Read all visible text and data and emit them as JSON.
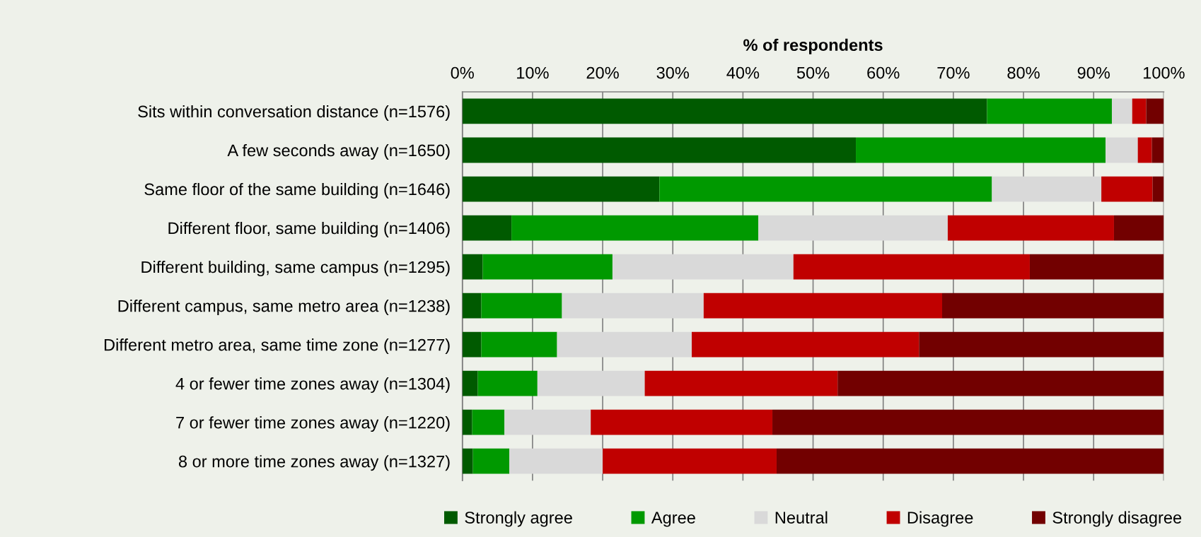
{
  "chart_data": {
    "type": "bar",
    "orientation": "horizontal",
    "stacked": true,
    "xlabel": "% of respondents",
    "categories": [
      "Sits within conversation distance (n=1576)",
      "A few seconds away (n=1650)",
      "Same floor of the same building (n=1646)",
      "Different floor, same building (n=1406)",
      "Different building, same campus (n=1295)",
      "Different campus, same metro area (n=1238)",
      "Different metro area, same time zone (n=1277)",
      "4 or fewer time zones away (n=1304)",
      "7 or fewer time zones away (n=1220)",
      "8 or more time zones away (n=1327)"
    ],
    "series": [
      {
        "name": "Strongly agree",
        "color": "#005a00",
        "values": [
          74.8,
          56.1,
          28.1,
          7.0,
          2.9,
          2.7,
          2.7,
          2.2,
          1.4,
          1.5
        ]
      },
      {
        "name": "Agree",
        "color": "#009900",
        "values": [
          17.8,
          35.6,
          47.4,
          35.2,
          18.5,
          11.5,
          10.8,
          8.5,
          4.6,
          5.2
        ]
      },
      {
        "name": "Neutral",
        "color": "#d9d9d9",
        "values": [
          2.9,
          4.6,
          15.6,
          27.0,
          25.8,
          20.2,
          19.2,
          15.3,
          12.3,
          13.3
        ]
      },
      {
        "name": "Disagree",
        "color": "#c00000",
        "values": [
          2.0,
          2.0,
          7.3,
          23.7,
          33.7,
          34.0,
          32.4,
          27.5,
          25.9,
          24.8
        ]
      },
      {
        "name": "Strongly disagree",
        "color": "#720000",
        "values": [
          2.5,
          1.7,
          1.6,
          7.1,
          19.1,
          31.6,
          34.9,
          46.5,
          55.8,
          55.2
        ]
      }
    ],
    "xlim": [
      0,
      100
    ],
    "xticks": [
      {
        "value": 0,
        "label": "0%"
      },
      {
        "value": 10,
        "label": "10%"
      },
      {
        "value": 20,
        "label": "20%"
      },
      {
        "value": 30,
        "label": "30%"
      },
      {
        "value": 40,
        "label": "40%"
      },
      {
        "value": 50,
        "label": "50%"
      },
      {
        "value": 60,
        "label": "60%"
      },
      {
        "value": 70,
        "label": "70%"
      },
      {
        "value": 80,
        "label": "80%"
      },
      {
        "value": 90,
        "label": "90%"
      },
      {
        "value": 100,
        "label": "100%"
      }
    ],
    "grid": "x",
    "legend": "bottom"
  }
}
